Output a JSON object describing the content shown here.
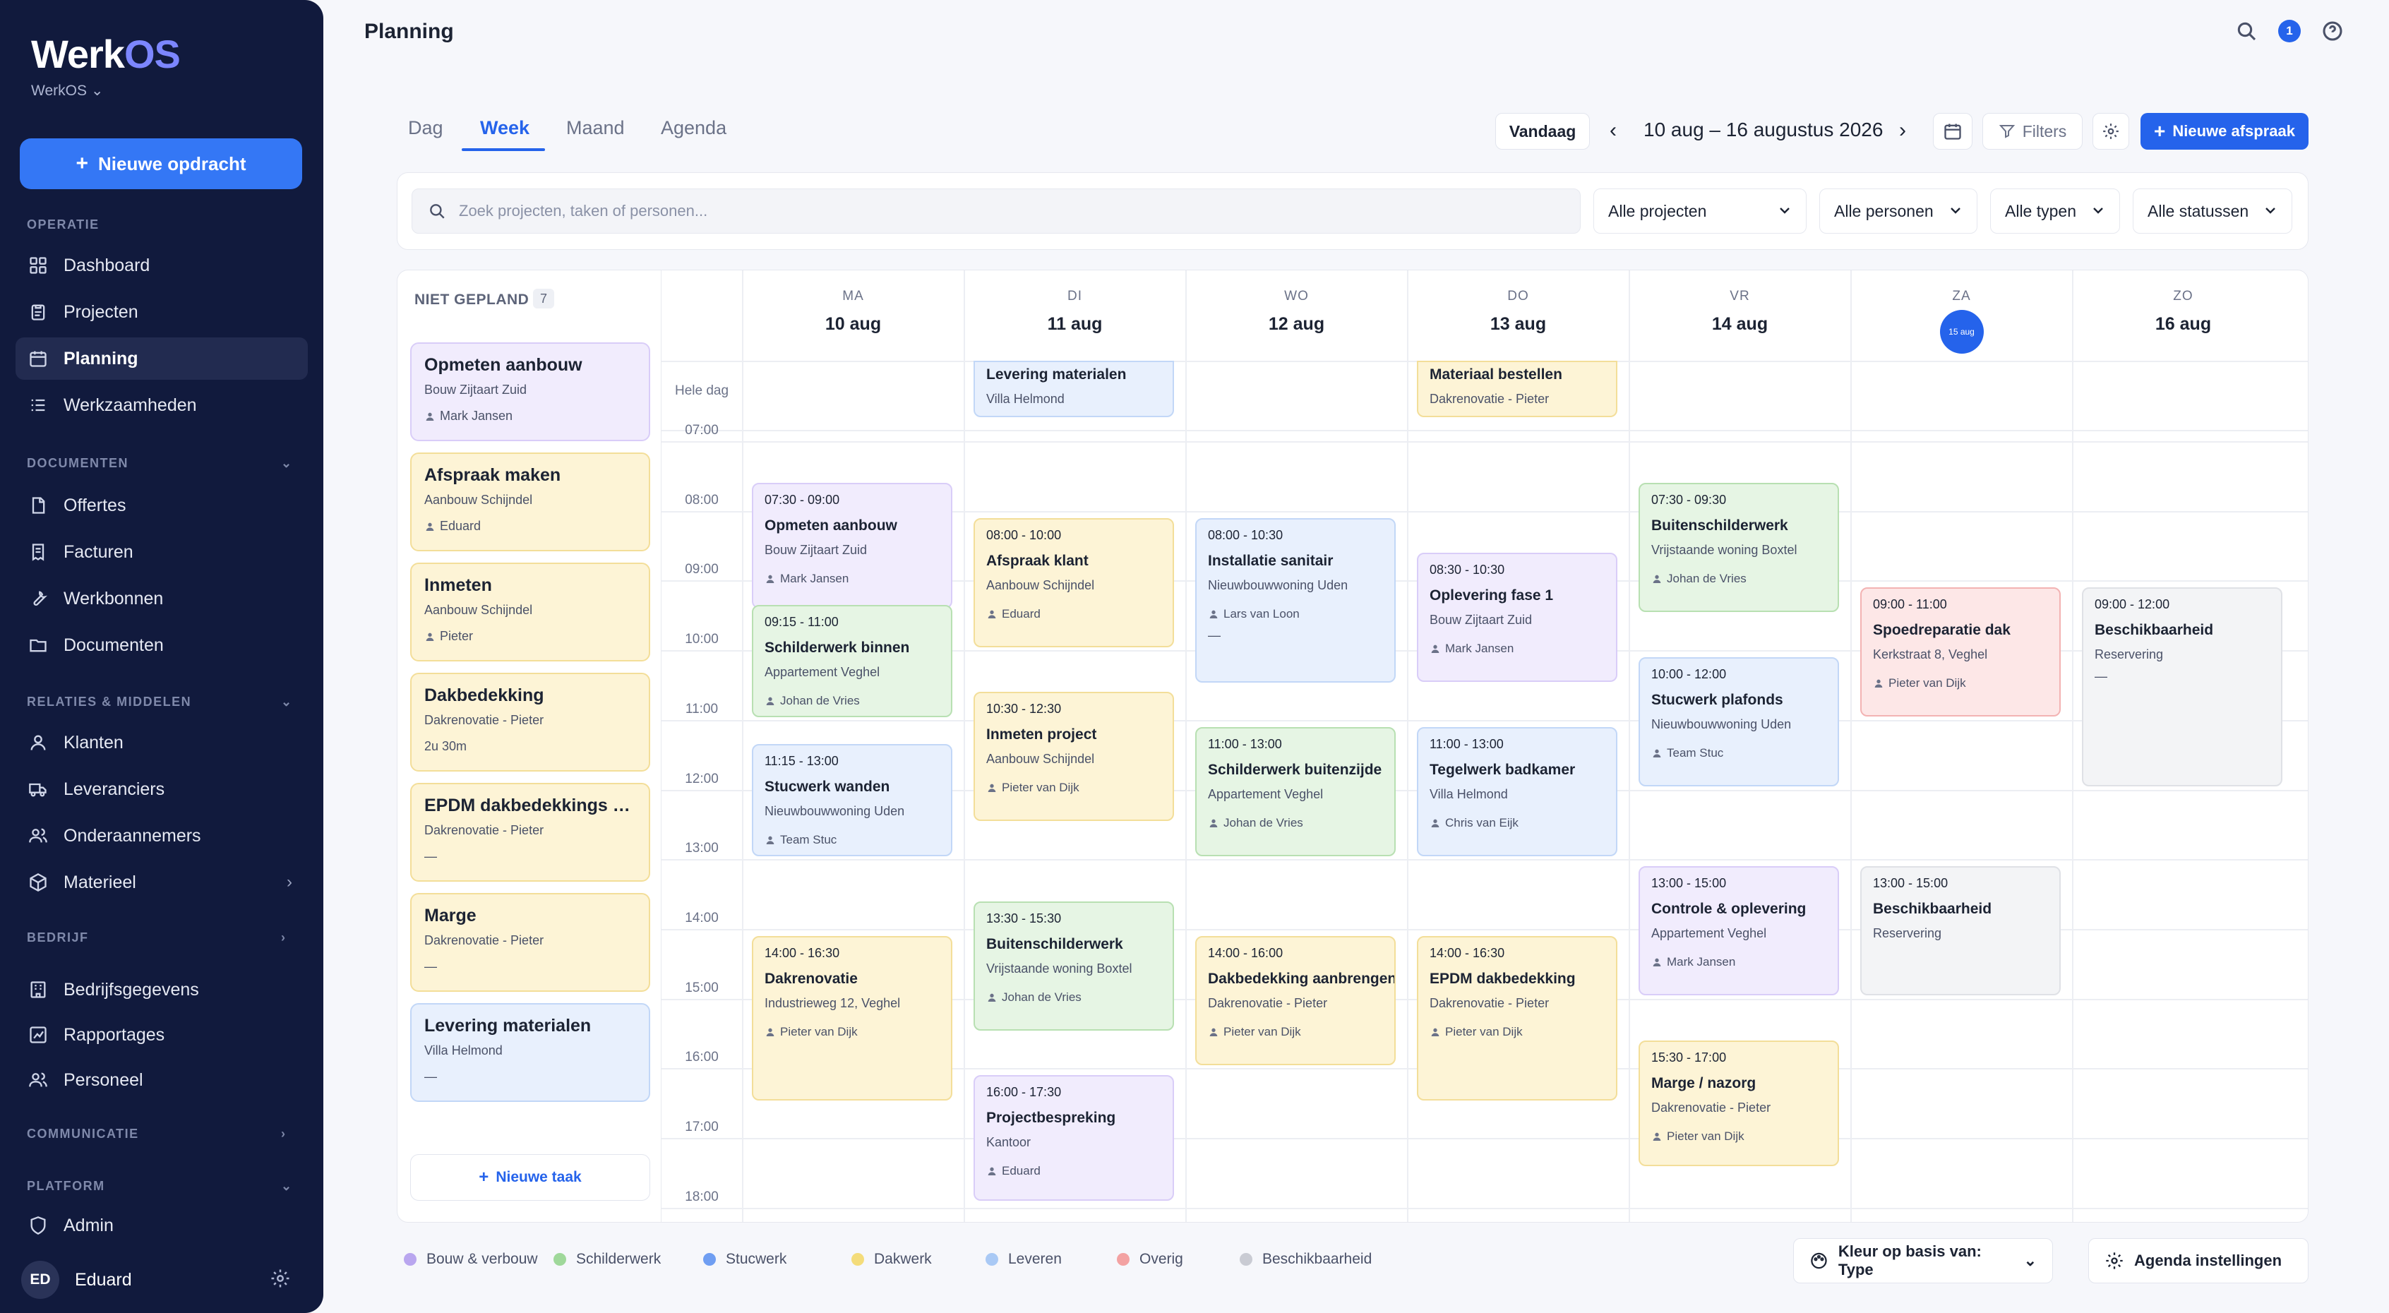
{
  "sidebar": {
    "logo_a": "Werk",
    "logo_b": "OS",
    "workspace": "WerkOS",
    "new_job": "Nieuwe opdracht",
    "sections": {
      "operatie": "OPERATIE",
      "documenten": "DOCUMENTEN",
      "relaties": "RELATIES & MIDDELEN",
      "bedrijf": "BEDRIJF",
      "communicatie": "COMMUNICATIE",
      "platform": "PLATFORM"
    },
    "items": {
      "dashboard": "Dashboard",
      "projecten": "Projecten",
      "planning": "Planning",
      "werkzaamheden": "Werkzaamheden",
      "offertes": "Offertes",
      "facturen": "Facturen",
      "werkbonnen": "Werkbonnen",
      "documenten": "Documenten",
      "klanten": "Klanten",
      "leveranciers": "Leveranciers",
      "onderaannemers": "Onderaannemers",
      "materieel": "Materieel",
      "bedrijfsgegevens": "Bedrijfsgegevens",
      "rapportages": "Rapportages",
      "personeel": "Personeel",
      "admin": "Admin"
    },
    "user": {
      "initials": "ED",
      "name": "Eduard"
    }
  },
  "header": {
    "title": "Planning",
    "notifications": "1"
  },
  "toolbar": {
    "tabs": [
      "Dag",
      "Week",
      "Maand",
      "Agenda"
    ],
    "today": "Vandaag",
    "range": "10 aug – 16 augustus 2026",
    "filters": "Filters",
    "new_appointment": "Nieuwe afspraak"
  },
  "filters": {
    "search_placeholder": "Zoek projecten, taken of personen...",
    "projects": "Alle projecten",
    "people": "Alle personen",
    "types": "Alle typen",
    "statuses": "Alle statussen"
  },
  "unplanned": {
    "title": "NIET GEPLAND",
    "count": "7",
    "items": [
      {
        "title": "Opmeten aanbouw",
        "sub": "Bouw Zijtaart Zuid",
        "person": "Mark Jansen",
        "color": "purple"
      },
      {
        "title": "Afspraak maken",
        "sub": "Aanbouw Schijndel",
        "person": "Eduard",
        "color": "yellow"
      },
      {
        "title": "Inmeten",
        "sub": "Aanbouw Schijndel",
        "person": "Pieter",
        "color": "yellow"
      },
      {
        "title": "Dakbedekking",
        "sub": "Dakrenovatie - Pieter",
        "person": "2u 30m",
        "color": "yellow"
      },
      {
        "title": "EPDM dakbedekkings ro...",
        "sub": "Dakrenovatie - Pieter",
        "person": "—",
        "color": "yellow"
      },
      {
        "title": "Marge",
        "sub": "Dakrenovatie - Pieter",
        "person": "—",
        "color": "yellow"
      },
      {
        "title": "Levering materialen",
        "sub": "Villa Helmond",
        "person": "—",
        "color": "blue"
      }
    ],
    "new_task": "Nieuwe taak"
  },
  "calendar": {
    "days": [
      {
        "name": "MA",
        "date": "10 aug"
      },
      {
        "name": "DI",
        "date": "11 aug"
      },
      {
        "name": "WO",
        "date": "12 aug"
      },
      {
        "name": "DO",
        "date": "13 aug"
      },
      {
        "name": "VR",
        "date": "14 aug"
      },
      {
        "name": "ZA",
        "date": "15 aug"
      },
      {
        "name": "ZO",
        "date": "16 aug"
      }
    ],
    "all_day_label": "Hele dag",
    "hours": [
      "07:00",
      "08:00",
      "09:00",
      "10:00",
      "11:00",
      "12:00",
      "13:00",
      "14:00",
      "15:00",
      "16:00",
      "17:00",
      "18:00"
    ],
    "allday_events": [
      {
        "day": 1,
        "title": "Levering materialen",
        "sub": "Villa Helmond",
        "color": "blue"
      },
      {
        "day": 3,
        "title": "Materiaal bestellen",
        "sub": "Dakrenovatie - Pieter",
        "color": "yellow"
      }
    ],
    "events": [
      {
        "day": 0,
        "time": "07:30 - 09:00",
        "title": "Opmeten aanbouw",
        "sub": "Bouw Zijtaart Zuid",
        "person": "Mark Jansen",
        "color": "purple"
      },
      {
        "day": 0,
        "time": "09:15 - 11:00",
        "title": "Schilderwerk binnen",
        "sub": "Appartement Veghel",
        "person": "Johan de Vries",
        "color": "green"
      },
      {
        "day": 0,
        "time": "11:15 - 13:00",
        "title": "Stucwerk wanden",
        "sub": "Nieuwbouwwoning Uden",
        "person": "Team Stuc",
        "color": "blue"
      },
      {
        "day": 0,
        "time": "14:00 - 16:30",
        "title": "Dakrenovatie",
        "sub": "Industrieweg 12, Veghel",
        "person": "Pieter van Dijk",
        "color": "yellow"
      },
      {
        "day": 1,
        "time": "08:00 - 10:00",
        "title": "Afspraak klant",
        "sub": "Aanbouw Schijndel",
        "person": "Eduard",
        "color": "yellow"
      },
      {
        "day": 1,
        "time": "10:30 - 12:30",
        "title": "Inmeten project",
        "sub": "Aanbouw Schijndel",
        "person": "Pieter van Dijk",
        "color": "yellow"
      },
      {
        "day": 1,
        "time": "13:30 - 15:30",
        "title": "Buitenschilderwerk",
        "sub": "Vrijstaande woning Boxtel",
        "person": "Johan de Vries",
        "color": "green"
      },
      {
        "day": 1,
        "time": "16:00 - 17:30",
        "title": "Projectbespreking",
        "sub": "Kantoor",
        "person": "Eduard",
        "color": "purple"
      },
      {
        "day": 2,
        "time": "08:00 - 10:30",
        "title": "Installatie sanitair",
        "sub": "Nieuwbouwwoning Uden",
        "person": "Lars van Loon",
        "color": "blue",
        "extra": "—"
      },
      {
        "day": 2,
        "time": "11:00 - 13:00",
        "title": "Schilderwerk buitenzijde",
        "sub": "Appartement Veghel",
        "person": "Johan de Vries",
        "color": "green"
      },
      {
        "day": 2,
        "time": "14:00 - 16:00",
        "title": "Dakbedekking aanbrengen",
        "sub": "Dakrenovatie - Pieter",
        "person": "Pieter van Dijk",
        "color": "yellow"
      },
      {
        "day": 3,
        "time": "08:30 - 10:30",
        "title": "Oplevering fase 1",
        "sub": "Bouw Zijtaart Zuid",
        "person": "Mark Jansen",
        "color": "purple"
      },
      {
        "day": 3,
        "time": "11:00 - 13:00",
        "title": "Tegelwerk badkamer",
        "sub": "Villa Helmond",
        "person": "Chris van Eijk",
        "color": "blue"
      },
      {
        "day": 3,
        "time": "14:00 - 16:30",
        "title": "EPDM dakbedekking",
        "sub": "Dakrenovatie - Pieter",
        "person": "Pieter van Dijk",
        "color": "yellow"
      },
      {
        "day": 4,
        "time": "07:30 - 09:30",
        "title": "Buitenschilderwerk",
        "sub": "Vrijstaande woning Boxtel",
        "person": "Johan de Vries",
        "color": "green"
      },
      {
        "day": 4,
        "time": "10:00 - 12:00",
        "title": "Stucwerk plafonds",
        "sub": "Nieuwbouwwoning Uden",
        "person": "Team Stuc",
        "color": "blue"
      },
      {
        "day": 4,
        "time": "13:00 - 15:00",
        "title": "Controle & oplevering",
        "sub": "Appartement Veghel",
        "person": "Mark Jansen",
        "color": "purple"
      },
      {
        "day": 4,
        "time": "15:30 - 17:00",
        "title": "Marge / nazorg",
        "sub": "Dakrenovatie - Pieter",
        "person": "Pieter van Dijk",
        "color": "yellow"
      },
      {
        "day": 5,
        "time": "09:00 - 11:00",
        "title": "Spoedreparatie dak",
        "sub": "Kerkstraat 8, Veghel",
        "person": "Pieter van Dijk",
        "color": "red"
      },
      {
        "day": 5,
        "time": "13:00 - 15:00",
        "title": "Beschikbaarheid",
        "sub": "Reservering",
        "person": "",
        "color": "gray"
      },
      {
        "day": 6,
        "time": "09:00 - 12:00",
        "title": "Beschikbaarheid",
        "sub": "Reservering",
        "person": "",
        "color": "gray",
        "extra": "—"
      }
    ]
  },
  "legend": [
    {
      "label": "Bouw & verbouw",
      "color": "#b9a6ef"
    },
    {
      "label": "Schilderwerk",
      "color": "#9fd89a"
    },
    {
      "label": "Stucwerk",
      "color": "#6f9ef2"
    },
    {
      "label": "Dakwerk",
      "color": "#f4dc7a"
    },
    {
      "label": "Leveren",
      "color": "#a9c9f5"
    },
    {
      "label": "Overig",
      "color": "#f3a2a2"
    },
    {
      "label": "Beschikbaarheid",
      "color": "#c9cbd3"
    }
  ],
  "footer": {
    "color_by": "Kleur op basis van: Type",
    "settings": "Agenda instellingen"
  },
  "palette": {
    "purple": [
      "#f1ecfd",
      "#d9cdf8"
    ],
    "yellow": [
      "#fdf4d6",
      "#f3de99"
    ],
    "blue": [
      "#e8f0fd",
      "#c2d7f7"
    ],
    "green": [
      "#e6f5e4",
      "#b8e0b2"
    ],
    "red": [
      "#fde7e7",
      "#f3b3b3"
    ],
    "gray": [
      "#f3f4f6",
      "#dfe1e6"
    ]
  }
}
